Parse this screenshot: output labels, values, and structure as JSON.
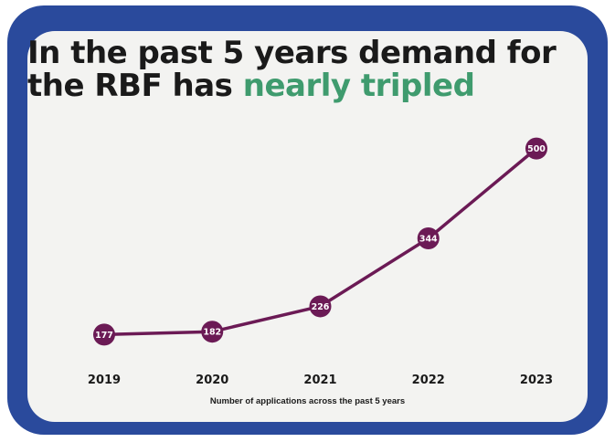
{
  "headline": {
    "line1": "In the past 5 years demand for",
    "line2_prefix": "the RBF has ",
    "line2_accent": "nearly tripled"
  },
  "colors": {
    "frame": "#2a4a9c",
    "card": "#f3f3f1",
    "accent": "#3f9b6e",
    "series": "#6b1a55",
    "text": "#1a1a1a"
  },
  "chart_data": {
    "type": "line",
    "title": "In the past 5 years demand for the RBF has nearly tripled",
    "categories": [
      "2019",
      "2020",
      "2021",
      "2022",
      "2023"
    ],
    "series": [
      {
        "values": [
          177,
          182,
          226,
          344,
          500
        ]
      }
    ],
    "data_labels": [
      "177",
      "182",
      "226",
      "344",
      "500"
    ],
    "xlabel": "Number of applications across the past 5 years",
    "ylabel": "",
    "ylim": [
      130,
      520
    ],
    "grid": false,
    "legend": "none"
  }
}
